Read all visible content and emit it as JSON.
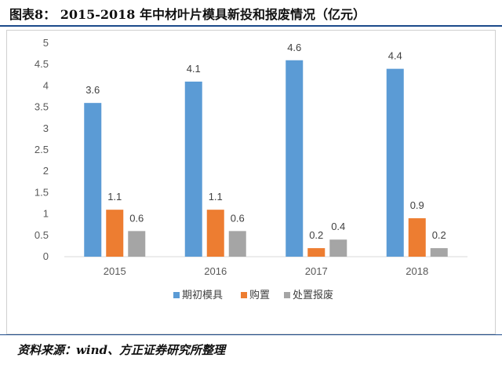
{
  "caption": "图表8： 2015-2018 年中材叶片模具新投和报废情况（亿元）",
  "source": "资料来源：wind、方正证券研究所整理",
  "colors": {
    "期初模具": "#5b9bd5",
    "购置": "#ed7d31",
    "处置报废": "#a5a5a5"
  },
  "chart_data": {
    "type": "bar",
    "categories": [
      "2015",
      "2016",
      "2017",
      "2018"
    ],
    "series": [
      {
        "name": "期初模具",
        "values": [
          3.6,
          4.1,
          4.6,
          4.4
        ]
      },
      {
        "name": "购置",
        "values": [
          1.1,
          1.1,
          0.2,
          0.9
        ]
      },
      {
        "name": "处置报废",
        "values": [
          0.6,
          0.6,
          0.4,
          0.2
        ]
      }
    ],
    "ylim": [
      0,
      5
    ],
    "yticks": [
      "0",
      "0.5",
      "1",
      "1.5",
      "2",
      "2.5",
      "3",
      "3.5",
      "4",
      "4.5",
      "5"
    ],
    "data_labels": true,
    "grid": false,
    "legend_position": "bottom"
  }
}
